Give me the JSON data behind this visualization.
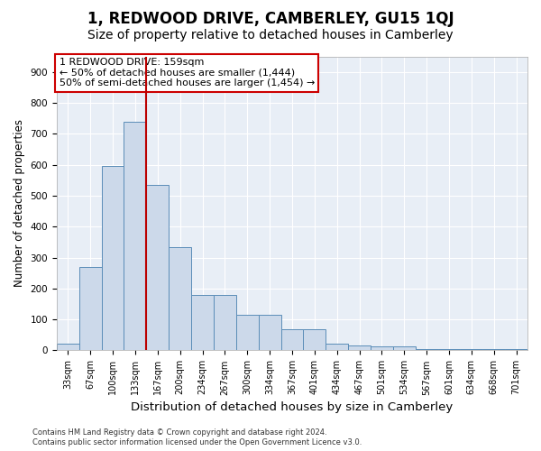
{
  "title": "1, REDWOOD DRIVE, CAMBERLEY, GU15 1QJ",
  "subtitle": "Size of property relative to detached houses in Camberley",
  "xlabel": "Distribution of detached houses by size in Camberley",
  "ylabel": "Number of detached properties",
  "bar_labels": [
    "33sqm",
    "67sqm",
    "100sqm",
    "133sqm",
    "167sqm",
    "200sqm",
    "234sqm",
    "267sqm",
    "300sqm",
    "334sqm",
    "367sqm",
    "401sqm",
    "434sqm",
    "467sqm",
    "501sqm",
    "534sqm",
    "567sqm",
    "601sqm",
    "634sqm",
    "668sqm",
    "701sqm"
  ],
  "bar_heights": [
    22,
    270,
    595,
    740,
    535,
    335,
    178,
    178,
    115,
    115,
    68,
    68,
    22,
    15,
    12,
    12,
    5,
    5,
    3,
    3,
    5
  ],
  "bar_color": "#ccd9ea",
  "bar_edge_color": "#5b8db8",
  "background_color": "#e8eef6",
  "vline_x": 4,
  "vline_color": "#bb0000",
  "annotation_text": "1 REDWOOD DRIVE: 159sqm\n← 50% of detached houses are smaller (1,444)\n50% of semi-detached houses are larger (1,454) →",
  "annotation_box_color": "#cc0000",
  "ylim": [
    0,
    950
  ],
  "yticks": [
    0,
    100,
    200,
    300,
    400,
    500,
    600,
    700,
    800,
    900
  ],
  "footer_line1": "Contains HM Land Registry data © Crown copyright and database right 2024.",
  "footer_line2": "Contains public sector information licensed under the Open Government Licence v3.0.",
  "title_fontsize": 12,
  "subtitle_fontsize": 10,
  "xlabel_fontsize": 9.5,
  "ylabel_fontsize": 8.5,
  "tick_fontsize": 7.5,
  "annot_fontsize": 8
}
